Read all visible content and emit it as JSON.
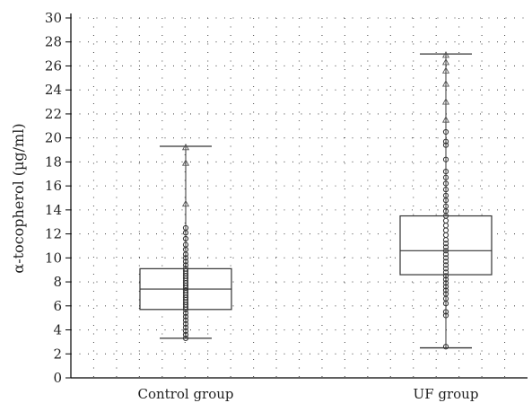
{
  "chart_data": {
    "type": "box",
    "ylabel": "α-tocopherol (µg/ml)",
    "ylim": [
      0,
      30
    ],
    "yticks": [
      0,
      2,
      4,
      6,
      8,
      10,
      12,
      14,
      16,
      18,
      20,
      22,
      24,
      26,
      28,
      30
    ],
    "grid": true,
    "categories": [
      "Control group",
      "UF group"
    ],
    "boxes": [
      {
        "category": "Control group",
        "whisker_low": 3.3,
        "q1": 5.7,
        "median": 7.4,
        "q3": 9.1,
        "whisker_high": 19.3,
        "outliers": [
          14.5,
          17.9,
          19.2
        ],
        "points": [
          3.3,
          3.6,
          3.9,
          4.2,
          4.5,
          4.8,
          5.1,
          5.4,
          5.7,
          5.9,
          6.1,
          6.3,
          6.5,
          6.7,
          6.9,
          7.1,
          7.3,
          7.5,
          7.7,
          7.9,
          8.1,
          8.3,
          8.5,
          8.7,
          8.9,
          9.1,
          9.4,
          9.7,
          10.0,
          10.3,
          10.7,
          11.1,
          11.6,
          12.1,
          12.5
        ]
      },
      {
        "category": "UF group",
        "whisker_low": 2.5,
        "q1": 8.6,
        "median": 10.6,
        "q3": 13.5,
        "whisker_high": 27.0,
        "outliers": [
          21.5,
          23.0,
          24.5,
          25.6,
          26.3,
          26.9
        ],
        "points": [
          2.6,
          5.2,
          5.5,
          6.2,
          6.6,
          7.0,
          7.3,
          7.6,
          7.9,
          8.2,
          8.5,
          8.8,
          9.1,
          9.4,
          9.7,
          10.0,
          10.3,
          10.6,
          10.9,
          11.2,
          11.5,
          11.9,
          12.3,
          12.7,
          13.1,
          13.5,
          13.9,
          14.3,
          14.8,
          15.2,
          15.7,
          16.2,
          16.7,
          17.2,
          18.2,
          19.4,
          19.7,
          20.5
        ]
      }
    ]
  }
}
